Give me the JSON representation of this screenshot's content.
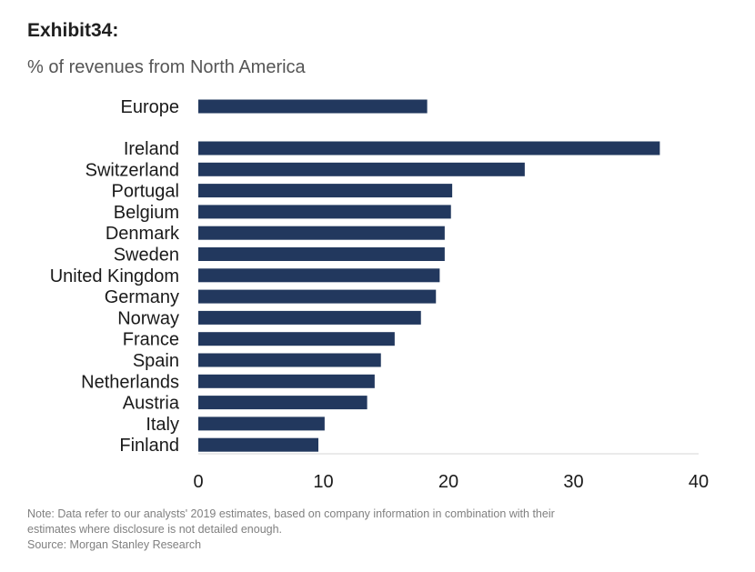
{
  "exhibit": {
    "title": "Exhibit34:"
  },
  "chart_data": {
    "type": "bar",
    "orientation": "horizontal",
    "title": "% of revenues from North America",
    "categories": [
      "Europe",
      "Ireland",
      "Switzerland",
      "Portugal",
      "Belgium",
      "Denmark",
      "Sweden",
      "United Kingdom",
      "Germany",
      "Norway",
      "France",
      "Spain",
      "Netherlands",
      "Austria",
      "Italy",
      "Finland"
    ],
    "values": [
      18.3,
      36.9,
      26.1,
      20.3,
      20.2,
      19.7,
      19.7,
      19.3,
      19.0,
      17.8,
      15.7,
      14.6,
      14.1,
      13.5,
      10.1,
      9.6
    ],
    "xlim": [
      0,
      40
    ],
    "xticks": [
      0,
      10,
      20,
      30,
      40
    ],
    "xlabel": "",
    "ylabel": "",
    "grid": false,
    "bar_color": "#22385e"
  },
  "footnotes": {
    "note_line1": "Note: Data refer to our analysts' 2019 estimates, based on company information in combination with their",
    "note_line2": "estimates where disclosure is not detailed enough.",
    "source": "Source: Morgan Stanley Research"
  }
}
